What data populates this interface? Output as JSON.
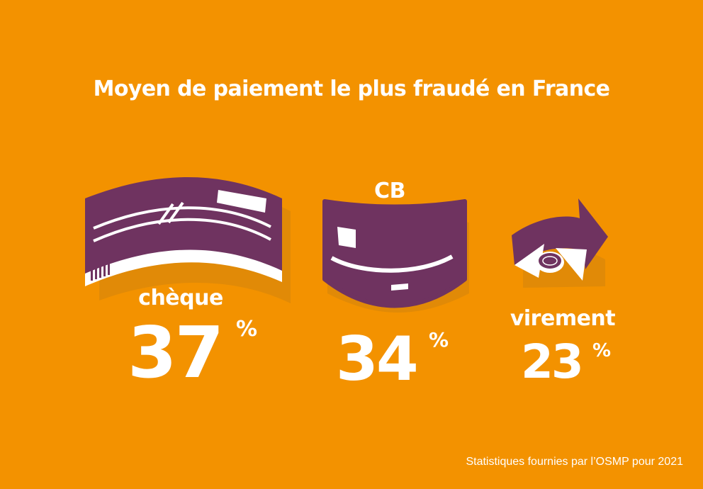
{
  "title": "Moyen de paiement le plus fraudé en France",
  "items": [
    {
      "label": "chèque",
      "value": "37",
      "unit": "%",
      "icon": "cheque-icon"
    },
    {
      "label": "CB",
      "value": "34",
      "unit": "%",
      "icon": "bank-card-icon"
    },
    {
      "label": "virement",
      "value": "23",
      "unit": "%",
      "icon": "transfer-arrow-icon"
    }
  ],
  "footer": "Statistiques fournies par l’OSMP pour 2021",
  "colors": {
    "background": "#f39200",
    "purple": "#6f3360",
    "shadow": "#d9870a",
    "text": "#ffffff"
  }
}
